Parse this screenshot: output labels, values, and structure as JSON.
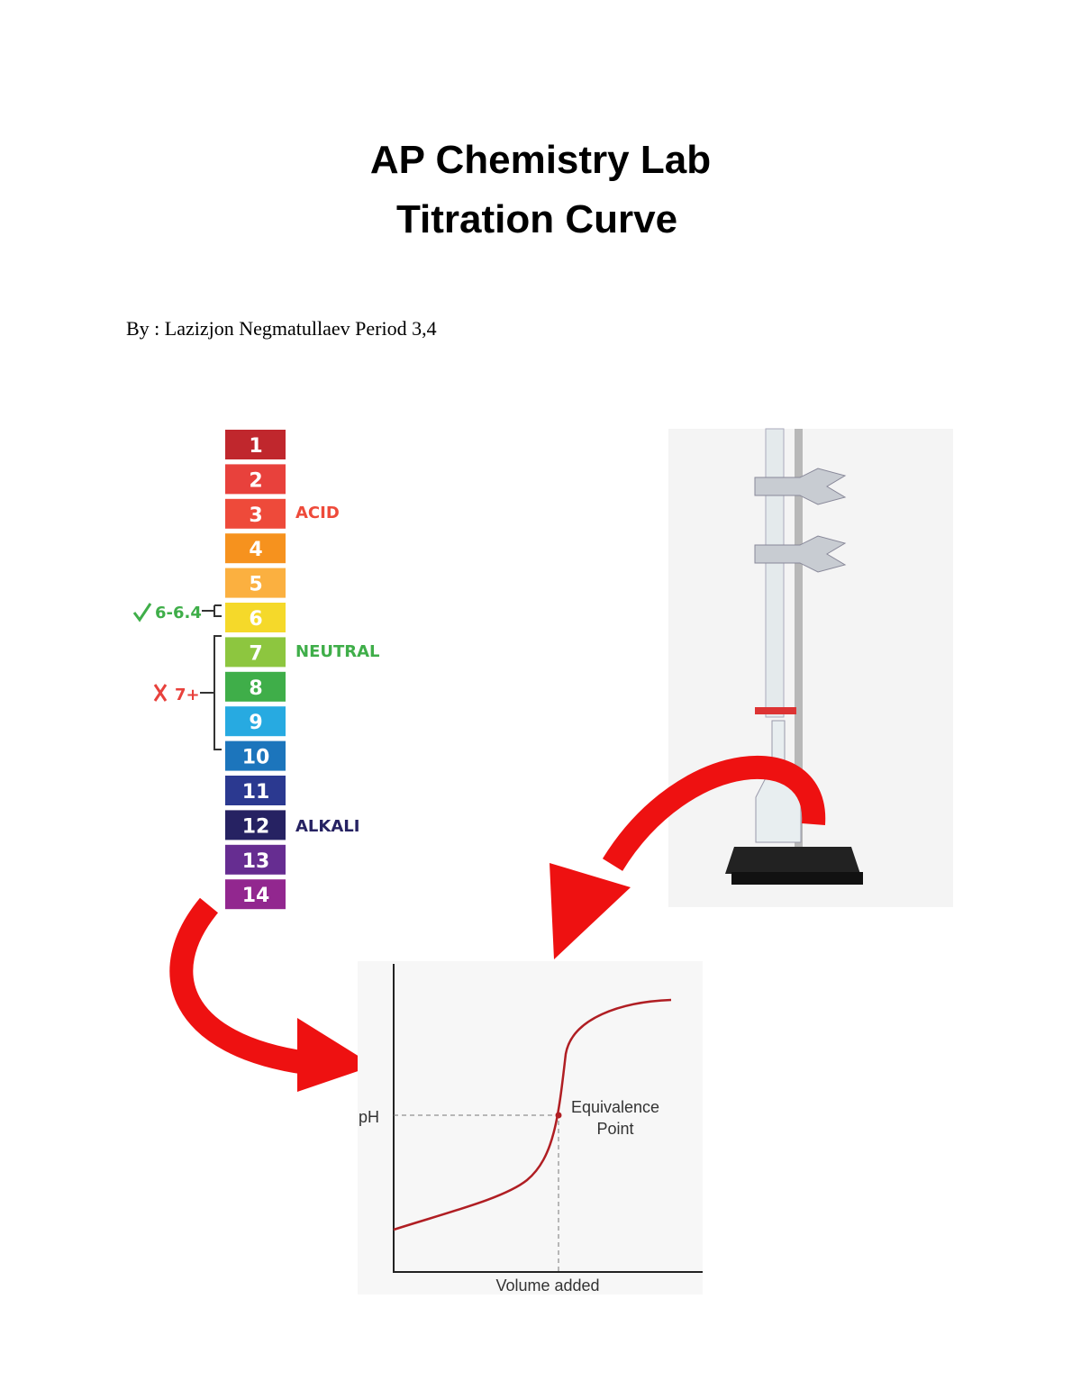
{
  "header": {
    "title": [
      "AP Chemistry Lab",
      "Titration Curve"
    ],
    "byline": "By : Lazizjon Negmatullaev Period 3,4"
  },
  "ph_scale": {
    "levels": [
      "1",
      "2",
      "3",
      "4",
      "5",
      "6",
      "7",
      "8",
      "9",
      "10",
      "11",
      "12",
      "13",
      "14"
    ],
    "colors": [
      "#c0272d",
      "#e8413c",
      "#ee4a3a",
      "#f6921e",
      "#fbb040",
      "#f5d92a",
      "#8dc63f",
      "#3fae49",
      "#27aae1",
      "#1c75bc",
      "#2b3990",
      "#262262",
      "#662d91",
      "#92278f"
    ],
    "acid": "ACID",
    "neutral": "NEUTRAL",
    "alkali": "ALKALI",
    "ok_range": "6-6.4",
    "bad_range": "7+"
  },
  "curve": {
    "y_label": "pH",
    "x_label": "Volume added",
    "point_label": [
      "Equivalence",
      "Point"
    ]
  }
}
